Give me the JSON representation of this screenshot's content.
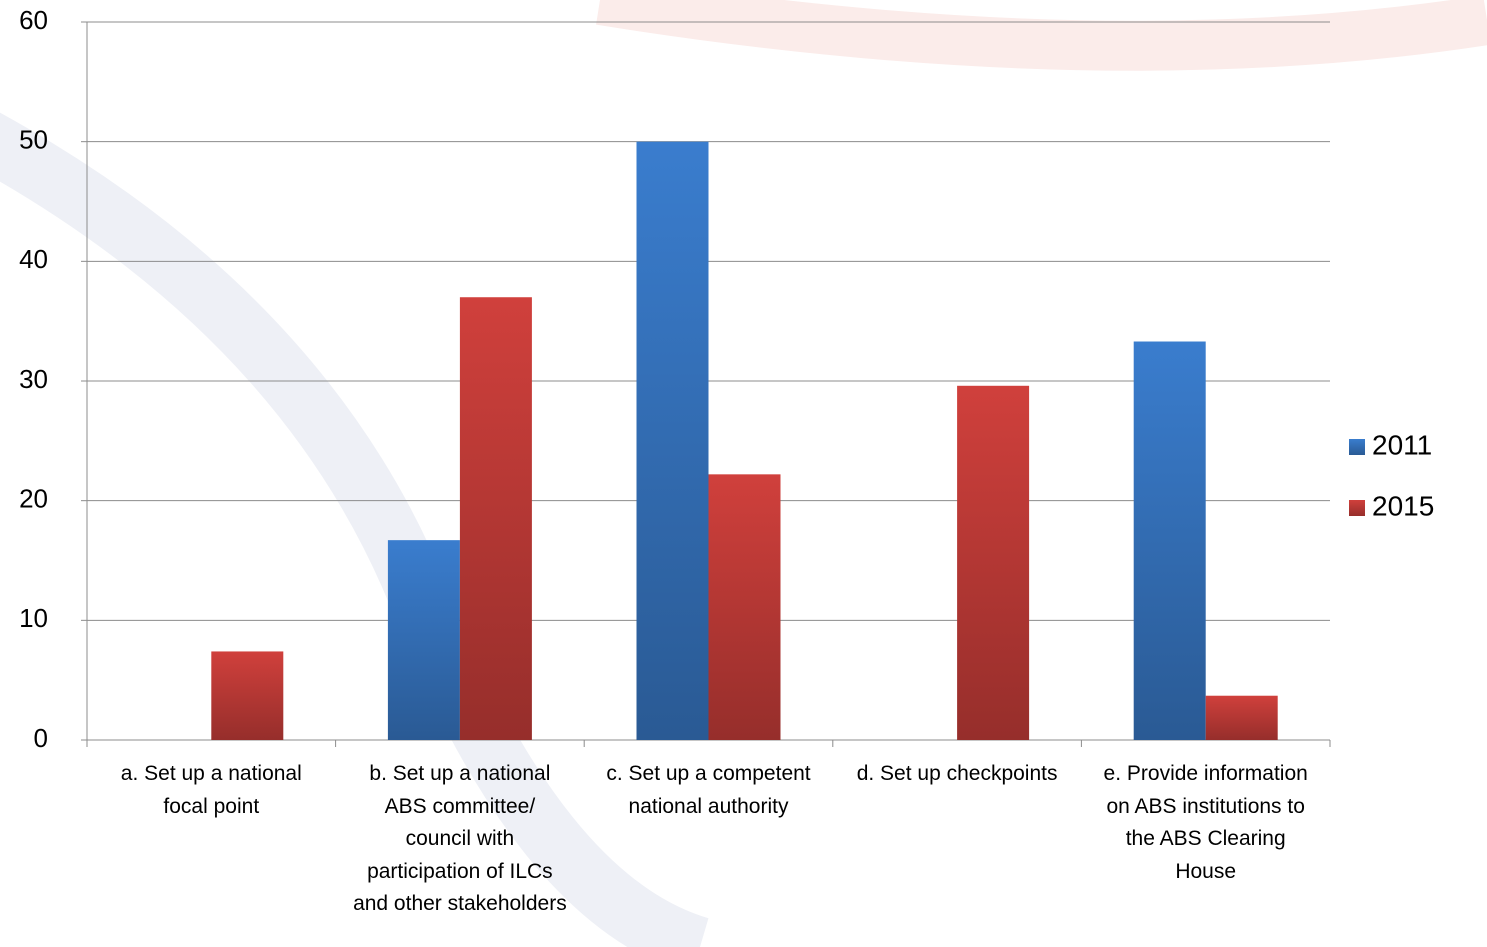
{
  "chart_data": {
    "type": "bar",
    "categories": [
      "a. Set up a national focal point",
      "b. Set up a national ABS committee/ council with participation of ILCs and other stakeholders",
      "c. Set up a competent national authority",
      "d. Set up checkpoints",
      "e. Provide information on ABS institutions to the ABS Clearing House"
    ],
    "series": [
      {
        "name": "2011",
        "color": "#3a7dce",
        "values": [
          0,
          16.7,
          50,
          0,
          33.3
        ]
      },
      {
        "name": "2015",
        "color": "#d0403c",
        "values": [
          7.4,
          37,
          22.2,
          29.6,
          3.7
        ]
      }
    ],
    "ylim": [
      0,
      60
    ],
    "yticks": [
      0,
      10,
      20,
      30,
      40,
      50,
      60
    ],
    "grid": true,
    "legend": "right"
  }
}
